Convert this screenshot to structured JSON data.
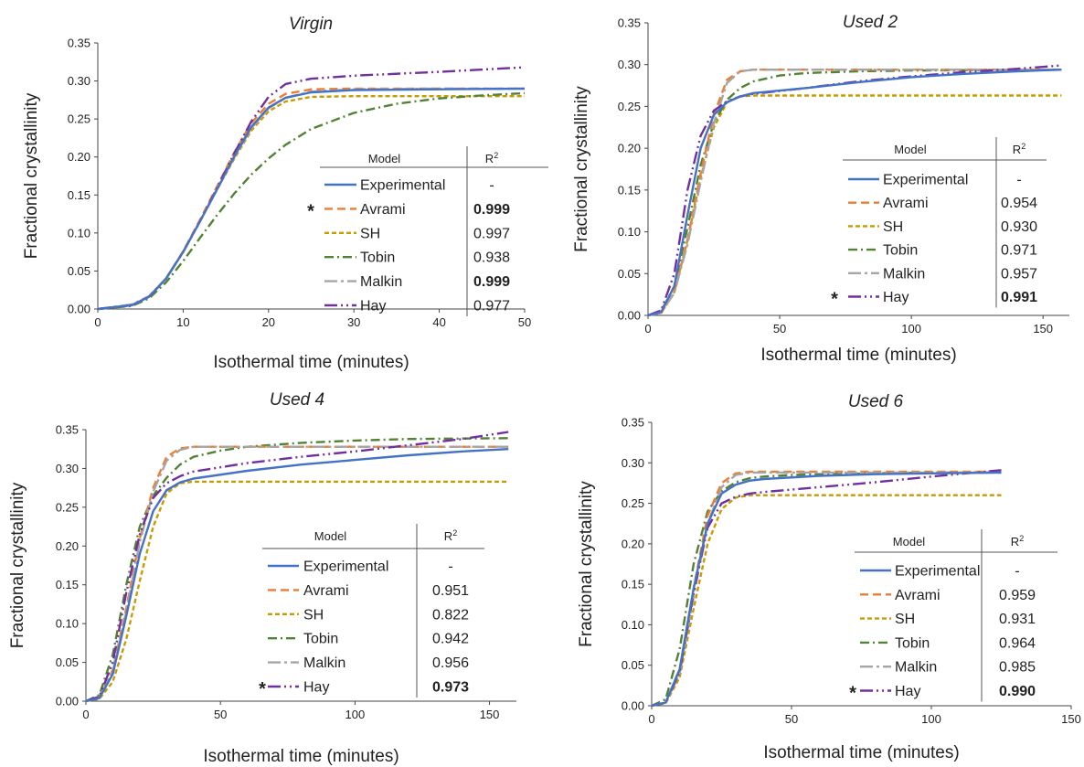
{
  "figure": {
    "series_styles": {
      "Experimental": {
        "color": "#4472c4",
        "dash": ""
      },
      "Avrami": {
        "color": "#ed7d31",
        "dash": "9,5"
      },
      "SH": {
        "color": "#c89b00",
        "dash": "5,3"
      },
      "Tobin": {
        "color": "#548235",
        "dash": "10,4,2,4"
      },
      "Malkin": {
        "color": "#a5a5a5",
        "dash": "14,4,3,4"
      },
      "Hay": {
        "color": "#7030a0",
        "dash": "14,4,2,4,2,4"
      }
    },
    "table_header": {
      "model": "Model",
      "r2_base": "R",
      "r2_sup": "2"
    },
    "star_symbol": "*"
  },
  "chart_data": [
    {
      "type": "line",
      "title": "Virgin",
      "xlabel": "Isothermal time (minutes)",
      "ylabel": "Fractional crystallinity",
      "xlim": [
        0,
        50
      ],
      "ylim": [
        0,
        0.35
      ],
      "xticks": [
        "0",
        "10",
        "20",
        "30",
        "40",
        "50"
      ],
      "yticks": [
        "0.00",
        "0.05",
        "0.10",
        "0.15",
        "0.20",
        "0.25",
        "0.30",
        "0.35"
      ],
      "grid": false,
      "legend": "table at right",
      "series": [
        {
          "name": "Experimental",
          "x": [
            0,
            4,
            6,
            8,
            10,
            12,
            14,
            16,
            18,
            20,
            22,
            25,
            30,
            40,
            50
          ],
          "y": [
            0,
            0.005,
            0.016,
            0.04,
            0.075,
            0.116,
            0.158,
            0.201,
            0.24,
            0.265,
            0.278,
            0.285,
            0.288,
            0.289,
            0.29
          ]
        },
        {
          "name": "Avrami",
          "x": [
            0,
            4,
            6,
            8,
            10,
            12,
            14,
            16,
            18,
            20,
            22,
            25,
            30,
            40,
            50
          ],
          "y": [
            0,
            0.005,
            0.016,
            0.04,
            0.076,
            0.118,
            0.162,
            0.206,
            0.245,
            0.27,
            0.283,
            0.289,
            0.29,
            0.29,
            0.29
          ]
        },
        {
          "name": "SH",
          "x": [
            0,
            4,
            6,
            8,
            10,
            12,
            14,
            16,
            18,
            20,
            22,
            25,
            30,
            40,
            50
          ],
          "y": [
            0,
            0.005,
            0.016,
            0.04,
            0.075,
            0.116,
            0.158,
            0.198,
            0.235,
            0.26,
            0.273,
            0.279,
            0.28,
            0.28,
            0.28
          ]
        },
        {
          "name": "Tobin",
          "x": [
            0,
            4,
            6,
            8,
            10,
            12,
            14,
            16,
            18,
            20,
            22,
            25,
            30,
            35,
            40,
            45,
            50
          ],
          "y": [
            0,
            0.004,
            0.014,
            0.035,
            0.063,
            0.094,
            0.124,
            0.152,
            0.177,
            0.198,
            0.216,
            0.237,
            0.258,
            0.27,
            0.277,
            0.281,
            0.284
          ]
        },
        {
          "name": "Malkin",
          "x": [
            0,
            4,
            6,
            8,
            10,
            12,
            14,
            16,
            18,
            20,
            22,
            25,
            30,
            40,
            50
          ],
          "y": [
            0,
            0.006,
            0.017,
            0.04,
            0.075,
            0.116,
            0.158,
            0.2,
            0.238,
            0.264,
            0.278,
            0.286,
            0.289,
            0.29,
            0.29
          ]
        },
        {
          "name": "Hay",
          "x": [
            0,
            4,
            6,
            8,
            10,
            12,
            14,
            16,
            18,
            20,
            22,
            25,
            30,
            40,
            50
          ],
          "y": [
            0,
            0.005,
            0.016,
            0.04,
            0.075,
            0.116,
            0.16,
            0.205,
            0.247,
            0.279,
            0.296,
            0.303,
            0.307,
            0.312,
            0.318
          ]
        }
      ],
      "table": [
        {
          "model": "Experimental",
          "r2": "-",
          "best": false,
          "star": false
        },
        {
          "model": "Avrami",
          "r2": "0.999",
          "best": true,
          "star": true
        },
        {
          "model": "SH",
          "r2": "0.997",
          "best": false,
          "star": false
        },
        {
          "model": "Tobin",
          "r2": "0.938",
          "best": false,
          "star": false
        },
        {
          "model": "Malkin",
          "r2": "0.999",
          "best": true,
          "star": false
        },
        {
          "model": "Hay",
          "r2": "0.977",
          "best": false,
          "star": false
        }
      ]
    },
    {
      "type": "line",
      "title": "Used 2",
      "xlabel": "Isothermal time (minutes)",
      "ylabel": "Fractional crystallinity",
      "xlim": [
        0,
        160
      ],
      "ylim": [
        0,
        0.35
      ],
      "xticks": [
        "0",
        "50",
        "100",
        "150"
      ],
      "yticks": [
        "0.00",
        "0.05",
        "0.10",
        "0.15",
        "0.20",
        "0.25",
        "0.30",
        "0.35"
      ],
      "grid": false,
      "legend": "table at right",
      "series": [
        {
          "name": "Experimental",
          "x": [
            0,
            5,
            10,
            15,
            20,
            25,
            30,
            35,
            40,
            60,
            80,
            100,
            120,
            140,
            157
          ],
          "y": [
            0,
            0.004,
            0.035,
            0.12,
            0.2,
            0.24,
            0.255,
            0.262,
            0.266,
            0.272,
            0.279,
            0.285,
            0.289,
            0.292,
            0.294
          ]
        },
        {
          "name": "Avrami",
          "x": [
            0,
            5,
            10,
            15,
            20,
            25,
            30,
            35,
            40,
            60,
            100,
            157
          ],
          "y": [
            0,
            0.003,
            0.028,
            0.09,
            0.17,
            0.24,
            0.282,
            0.292,
            0.294,
            0.294,
            0.294,
            0.294
          ]
        },
        {
          "name": "SH",
          "x": [
            0,
            5,
            10,
            15,
            20,
            25,
            30,
            35,
            40,
            100,
            157
          ],
          "y": [
            0,
            0.003,
            0.028,
            0.09,
            0.165,
            0.225,
            0.255,
            0.262,
            0.263,
            0.263,
            0.263
          ]
        },
        {
          "name": "Tobin",
          "x": [
            0,
            5,
            10,
            15,
            20,
            25,
            30,
            35,
            40,
            50,
            60,
            80,
            100,
            157
          ],
          "y": [
            0,
            0.005,
            0.035,
            0.105,
            0.18,
            0.23,
            0.258,
            0.272,
            0.28,
            0.287,
            0.29,
            0.292,
            0.293,
            0.294
          ]
        },
        {
          "name": "Malkin",
          "x": [
            0,
            5,
            10,
            15,
            20,
            25,
            30,
            35,
            40,
            60,
            100,
            157
          ],
          "y": [
            0,
            0.003,
            0.027,
            0.085,
            0.16,
            0.23,
            0.278,
            0.292,
            0.294,
            0.294,
            0.294,
            0.294
          ]
        },
        {
          "name": "Hay",
          "x": [
            0,
            5,
            10,
            15,
            20,
            25,
            30,
            35,
            40,
            60,
            80,
            100,
            120,
            140,
            157
          ],
          "y": [
            0,
            0.006,
            0.05,
            0.15,
            0.215,
            0.245,
            0.256,
            0.262,
            0.265,
            0.272,
            0.28,
            0.286,
            0.291,
            0.295,
            0.299
          ]
        }
      ],
      "table": [
        {
          "model": "Experimental",
          "r2": "-",
          "best": false,
          "star": false
        },
        {
          "model": "Avrami",
          "r2": "0.954",
          "best": false,
          "star": false
        },
        {
          "model": "SH",
          "r2": "0.930",
          "best": false,
          "star": false
        },
        {
          "model": "Tobin",
          "r2": "0.971",
          "best": false,
          "star": false
        },
        {
          "model": "Malkin",
          "r2": "0.957",
          "best": false,
          "star": false
        },
        {
          "model": "Hay",
          "r2": "0.991",
          "best": true,
          "star": true
        }
      ]
    },
    {
      "type": "line",
      "title": "Used 4",
      "xlabel": "Isothermal time (minutes)",
      "ylabel": "Fractional crystallinity",
      "xlim": [
        0,
        160
      ],
      "ylim": [
        0,
        0.35
      ],
      "xticks": [
        "0",
        "50",
        "100",
        "150"
      ],
      "yticks": [
        "0.00",
        "0.05",
        "0.10",
        "0.15",
        "0.20",
        "0.25",
        "0.30",
        "0.35"
      ],
      "grid": false,
      "legend": "table at right",
      "series": [
        {
          "name": "Experimental",
          "x": [
            0,
            5,
            10,
            15,
            20,
            25,
            30,
            35,
            40,
            60,
            80,
            100,
            120,
            140,
            157
          ],
          "y": [
            0,
            0.004,
            0.035,
            0.11,
            0.19,
            0.245,
            0.272,
            0.282,
            0.287,
            0.297,
            0.305,
            0.311,
            0.317,
            0.322,
            0.325
          ]
        },
        {
          "name": "Avrami",
          "x": [
            0,
            5,
            10,
            15,
            20,
            25,
            30,
            35,
            40,
            60,
            100,
            157
          ],
          "y": [
            0,
            0.005,
            0.04,
            0.12,
            0.21,
            0.275,
            0.315,
            0.326,
            0.328,
            0.328,
            0.328,
            0.328
          ]
        },
        {
          "name": "SH",
          "x": [
            0,
            5,
            10,
            15,
            20,
            25,
            30,
            35,
            40,
            100,
            157
          ],
          "y": [
            0,
            0.003,
            0.025,
            0.08,
            0.155,
            0.225,
            0.268,
            0.281,
            0.283,
            0.283,
            0.283
          ]
        },
        {
          "name": "Tobin",
          "x": [
            0,
            5,
            10,
            15,
            20,
            25,
            30,
            35,
            40,
            50,
            60,
            80,
            100,
            120,
            157
          ],
          "y": [
            0,
            0.008,
            0.06,
            0.15,
            0.225,
            0.265,
            0.288,
            0.305,
            0.315,
            0.323,
            0.328,
            0.333,
            0.336,
            0.338,
            0.339
          ]
        },
        {
          "name": "Malkin",
          "x": [
            0,
            5,
            10,
            15,
            20,
            25,
            30,
            35,
            40,
            60,
            100,
            157
          ],
          "y": [
            0,
            0.004,
            0.038,
            0.115,
            0.205,
            0.27,
            0.31,
            0.324,
            0.328,
            0.328,
            0.328,
            0.328
          ]
        },
        {
          "name": "Hay",
          "x": [
            0,
            5,
            10,
            15,
            20,
            25,
            30,
            35,
            40,
            60,
            80,
            100,
            120,
            140,
            157
          ],
          "y": [
            0,
            0.006,
            0.05,
            0.14,
            0.215,
            0.262,
            0.281,
            0.29,
            0.296,
            0.307,
            0.315,
            0.322,
            0.33,
            0.338,
            0.347
          ]
        }
      ],
      "table": [
        {
          "model": "Experimental",
          "r2": "-",
          "best": false,
          "star": false
        },
        {
          "model": "Avrami",
          "r2": "0.951",
          "best": false,
          "star": false
        },
        {
          "model": "SH",
          "r2": "0.822",
          "best": false,
          "star": false
        },
        {
          "model": "Tobin",
          "r2": "0.942",
          "best": false,
          "star": false
        },
        {
          "model": "Malkin",
          "r2": "0.956",
          "best": false,
          "star": false
        },
        {
          "model": "Hay",
          "r2": "0.973",
          "best": true,
          "star": true
        }
      ]
    },
    {
      "type": "line",
      "title": "Used 6",
      "xlabel": "Isothermal time (minutes)",
      "ylabel": "Fractional crystallinity",
      "xlim": [
        0,
        150
      ],
      "ylim": [
        0,
        0.35
      ],
      "xticks": [
        "0",
        "50",
        "100",
        "150"
      ],
      "yticks": [
        "0.00",
        "0.05",
        "0.10",
        "0.15",
        "0.20",
        "0.25",
        "0.30",
        "0.35"
      ],
      "grid": false,
      "legend": "table at right",
      "series": [
        {
          "name": "Experimental",
          "x": [
            0,
            5,
            10,
            15,
            20,
            25,
            30,
            35,
            40,
            60,
            80,
            100,
            125
          ],
          "y": [
            0,
            0.004,
            0.045,
            0.145,
            0.225,
            0.262,
            0.273,
            0.278,
            0.28,
            0.284,
            0.286,
            0.287,
            0.288
          ]
        },
        {
          "name": "Avrami",
          "x": [
            0,
            5,
            10,
            15,
            20,
            25,
            30,
            35,
            40,
            60,
            100,
            125
          ],
          "y": [
            0,
            0.004,
            0.045,
            0.145,
            0.235,
            0.275,
            0.287,
            0.289,
            0.289,
            0.289,
            0.289,
            0.289
          ]
        },
        {
          "name": "SH",
          "x": [
            0,
            5,
            10,
            15,
            20,
            25,
            30,
            35,
            40,
            100,
            125
          ],
          "y": [
            0,
            0.003,
            0.035,
            0.12,
            0.2,
            0.243,
            0.257,
            0.26,
            0.26,
            0.26,
            0.26
          ]
        },
        {
          "name": "Tobin",
          "x": [
            0,
            5,
            10,
            15,
            20,
            25,
            30,
            35,
            40,
            50,
            60,
            80,
            100,
            125
          ],
          "y": [
            0,
            0.008,
            0.07,
            0.175,
            0.24,
            0.265,
            0.276,
            0.281,
            0.283,
            0.285,
            0.286,
            0.287,
            0.288,
            0.288
          ]
        },
        {
          "name": "Malkin",
          "x": [
            0,
            5,
            10,
            15,
            20,
            25,
            30,
            35,
            40,
            60,
            100,
            125
          ],
          "y": [
            0,
            0.004,
            0.04,
            0.135,
            0.225,
            0.27,
            0.285,
            0.288,
            0.288,
            0.288,
            0.288,
            0.288
          ]
        },
        {
          "name": "Hay",
          "x": [
            0,
            5,
            10,
            15,
            20,
            25,
            30,
            35,
            40,
            60,
            80,
            100,
            125
          ],
          "y": [
            0,
            0.004,
            0.042,
            0.14,
            0.22,
            0.25,
            0.258,
            0.262,
            0.264,
            0.27,
            0.276,
            0.283,
            0.291
          ]
        }
      ],
      "table": [
        {
          "model": "Experimental",
          "r2": "-",
          "best": false,
          "star": false
        },
        {
          "model": "Avrami",
          "r2": "0.959",
          "best": false,
          "star": false
        },
        {
          "model": "SH",
          "r2": "0.931",
          "best": false,
          "star": false
        },
        {
          "model": "Tobin",
          "r2": "0.964",
          "best": false,
          "star": false
        },
        {
          "model": "Malkin",
          "r2": "0.985",
          "best": false,
          "star": false
        },
        {
          "model": "Hay",
          "r2": "0.990",
          "best": true,
          "star": true
        }
      ]
    }
  ]
}
